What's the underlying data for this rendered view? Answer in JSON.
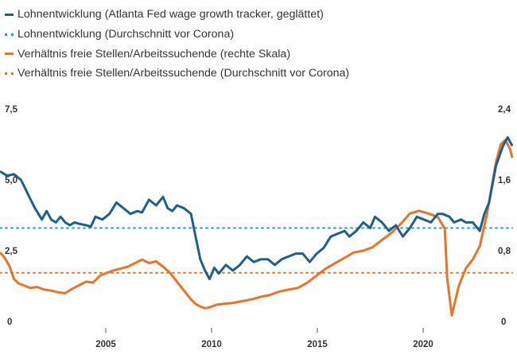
{
  "legend": [
    {
      "label": "Lohnentwicklung (Atlanta Fed wage growth tracker, geglättet)",
      "color": "#1f5f8b",
      "style": "solid"
    },
    {
      "label": "Lohnentwicklung (Durchschnitt vor Corona)",
      "color": "#1f9fd1",
      "style": "dotted"
    },
    {
      "label": "Verhältnis freie Stellen/Arbeitssuchende (rechte Skala)",
      "color": "#e8732a",
      "style": "solid"
    },
    {
      "label": "Verhältnis freie Stellen/Arbeitssuchende (Durchschnitt vor Corona)",
      "color": "#e8732a",
      "style": "dotted"
    }
  ],
  "chart_data": {
    "type": "line",
    "xlim": [
      2001,
      2023.2
    ],
    "ylim_left": [
      0,
      7.5
    ],
    "ylim_right": [
      0,
      2.4
    ],
    "x_ticks": [
      "2005",
      "2010",
      "2015",
      "2020"
    ],
    "y_left_ticks": [
      "0",
      "2,5",
      "5,0",
      "7,5"
    ],
    "y_right_ticks": [
      "0",
      "0,8",
      "1,6",
      "2,4"
    ],
    "series": [
      {
        "name": "Lohnentwicklung (Atlanta Fed wage growth tracker, geglättet)",
        "axis": "left",
        "color": "#1f5f8b",
        "style": "solid",
        "x": [
          2001.0,
          2001.3,
          2001.6,
          2001.9,
          2002.2,
          2002.5,
          2002.8,
          2003.0,
          2003.2,
          2003.4,
          2003.6,
          2003.8,
          2004.0,
          2004.2,
          2004.4,
          2004.7,
          2004.9,
          2005.1,
          2005.4,
          2005.7,
          2006.0,
          2006.3,
          2006.6,
          2006.9,
          2007.1,
          2007.4,
          2007.7,
          2008.0,
          2008.2,
          2008.4,
          2008.6,
          2008.9,
          2009.2,
          2009.4,
          2009.6,
          2009.8,
          2010.0,
          2010.2,
          2010.4,
          2010.7,
          2011.0,
          2011.3,
          2011.6,
          2011.9,
          2012.2,
          2012.5,
          2012.8,
          2013.1,
          2013.4,
          2013.7,
          2014.0,
          2014.3,
          2014.6,
          2014.9,
          2015.2,
          2015.5,
          2015.8,
          2016.0,
          2016.3,
          2016.6,
          2016.9,
          2017.1,
          2017.4,
          2017.7,
          2018.0,
          2018.3,
          2018.6,
          2018.9,
          2019.2,
          2019.5,
          2019.8,
          2020.0,
          2020.3,
          2020.5,
          2020.8,
          2021.0,
          2021.3,
          2021.6,
          2021.8,
          2022.0,
          2022.3,
          2022.6,
          2022.8,
          2023.0
        ],
        "y": [
          5.3,
          5.15,
          5.2,
          5.0,
          4.5,
          4.0,
          3.6,
          3.9,
          3.6,
          3.5,
          3.7,
          3.5,
          3.4,
          3.5,
          3.45,
          3.4,
          3.35,
          3.7,
          3.6,
          3.8,
          4.2,
          4.0,
          3.8,
          3.9,
          3.85,
          4.3,
          4.1,
          4.4,
          4.0,
          3.9,
          4.1,
          4.0,
          3.8,
          3.0,
          2.2,
          1.8,
          1.5,
          1.9,
          1.7,
          2.0,
          1.8,
          2.0,
          2.3,
          2.1,
          2.2,
          2.2,
          2.0,
          2.2,
          2.3,
          2.4,
          2.4,
          2.1,
          2.4,
          2.6,
          3.0,
          3.1,
          3.2,
          3.0,
          3.2,
          3.5,
          3.3,
          3.7,
          3.5,
          3.2,
          3.4,
          3.0,
          3.3,
          3.7,
          3.6,
          3.5,
          3.8,
          3.8,
          3.7,
          3.5,
          3.6,
          3.5,
          3.5,
          3.2,
          3.8,
          4.2,
          5.5,
          6.2,
          6.5,
          6.2
        ]
      },
      {
        "name": "Lohnentwicklung (Durchschnitt vor Corona)",
        "axis": "left",
        "color": "#1f9fd1",
        "style": "dotted",
        "x": [
          2001.0,
          2023.0
        ],
        "y": [
          3.3,
          3.3
        ]
      },
      {
        "name": "Verhältnis freie Stellen/Arbeitssuchende (rechte Skala)",
        "axis": "right",
        "color": "#e8732a",
        "style": "solid",
        "x": [
          2001.0,
          2001.2,
          2001.4,
          2001.6,
          2001.8,
          2002.0,
          2002.3,
          2002.6,
          2002.9,
          2003.2,
          2003.5,
          2003.8,
          2004.1,
          2004.4,
          2004.7,
          2005.0,
          2005.3,
          2005.6,
          2005.9,
          2006.2,
          2006.5,
          2006.8,
          2007.1,
          2007.4,
          2007.7,
          2008.0,
          2008.3,
          2008.6,
          2008.9,
          2009.2,
          2009.4,
          2009.6,
          2009.8,
          2010.0,
          2010.3,
          2010.6,
          2011.0,
          2011.4,
          2011.8,
          2012.2,
          2012.6,
          2013.0,
          2013.4,
          2013.8,
          2014.2,
          2014.6,
          2015.0,
          2015.4,
          2015.8,
          2016.2,
          2016.6,
          2017.0,
          2017.4,
          2017.8,
          2018.2,
          2018.6,
          2019.0,
          2019.4,
          2019.8,
          2020.1,
          2020.2,
          2020.4,
          2020.7,
          2021.0,
          2021.3,
          2021.6,
          2021.9,
          2022.1,
          2022.3,
          2022.5,
          2022.7,
          2022.9,
          2023.0
        ],
        "y": [
          0.78,
          0.72,
          0.63,
          0.48,
          0.43,
          0.41,
          0.38,
          0.39,
          0.36,
          0.35,
          0.33,
          0.32,
          0.37,
          0.41,
          0.45,
          0.44,
          0.52,
          0.55,
          0.58,
          0.6,
          0.62,
          0.66,
          0.7,
          0.66,
          0.68,
          0.62,
          0.55,
          0.45,
          0.35,
          0.25,
          0.2,
          0.17,
          0.15,
          0.16,
          0.19,
          0.2,
          0.21,
          0.23,
          0.25,
          0.28,
          0.3,
          0.34,
          0.36,
          0.38,
          0.44,
          0.52,
          0.6,
          0.66,
          0.72,
          0.78,
          0.8,
          0.84,
          0.92,
          1.0,
          1.1,
          1.22,
          1.25,
          1.22,
          1.18,
          1.05,
          0.5,
          0.07,
          0.4,
          0.6,
          0.7,
          0.85,
          1.2,
          1.5,
          1.8,
          2.0,
          2.05,
          1.95,
          1.85
        ]
      },
      {
        "name": "Verhältnis freie Stellen/Arbeitssuchende (Durchschnitt vor Corona)",
        "axis": "right",
        "color": "#e8732a",
        "style": "dotted",
        "x": [
          2001.0,
          2023.0
        ],
        "y": [
          0.55,
          0.55
        ]
      }
    ]
  }
}
